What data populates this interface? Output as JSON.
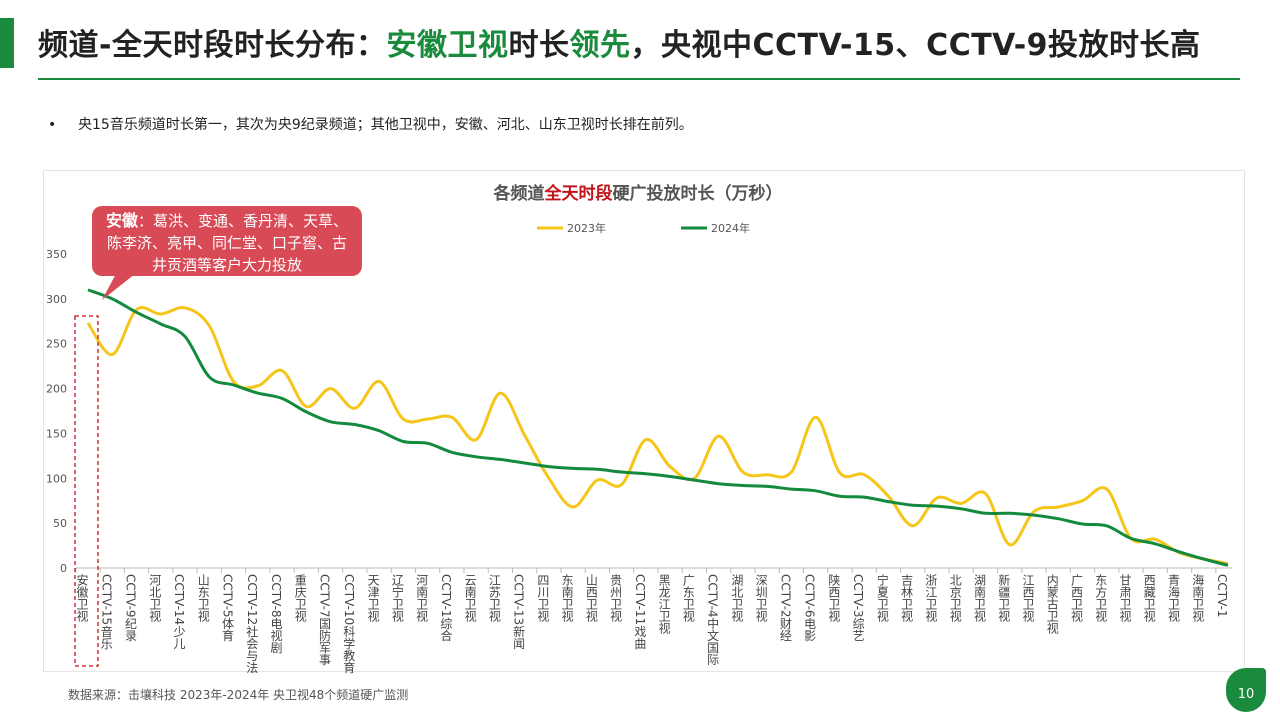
{
  "page": {
    "title_part1": "频道-全天时段时长分布：",
    "title_hl1": "安徽卫视",
    "title_part2": "时长",
    "title_hl2": "领先",
    "title_part3": "，央视中CCTV-15、CCTV-9投放时长高",
    "bullet_symbol": "•",
    "bullet_text": "央15音乐频道时长第一，其次为央9纪录频道；其他卫视中，安徽、河北、山东卫视时长排在前列。",
    "callout_bold": "安徽",
    "callout_text": "：葛洪、变通、香丹清、天草、陈李济、亮甲、同仁堂、口子窖、古井贡酒等客户大力投放",
    "footnote": "数据来源：击壤科技  2023年-2024年 央卫视48个频道硬广监测",
    "page_number": "10"
  },
  "colors": {
    "accent": "#1a8a3c",
    "series_2023": "#f5c518",
    "series_2024": "#138a3e",
    "callout_bg": "#d84a56",
    "highlight_red": "#c0151b"
  },
  "chart_data": {
    "type": "line",
    "title_part1": "各频道",
    "title_red": "全天时段",
    "title_part2": "硬广投放时长（万秒）",
    "xlabel": "",
    "ylabel": "",
    "ylim": [
      0,
      350
    ],
    "yticks": [
      0,
      50,
      100,
      150,
      200,
      250,
      300,
      350
    ],
    "grid": false,
    "legend_position": "top-center",
    "categories": [
      "安徽卫视",
      "CCTV-15音乐",
      "CCTV-9纪录",
      "河北卫视",
      "CCTV-14少儿",
      "山东卫视",
      "CCTV-5体育",
      "CCTV-12社会与法",
      "CCTV-8电视剧",
      "重庆卫视",
      "CCTV-7国防军事",
      "CCTV-10科学教育",
      "天津卫视",
      "辽宁卫视",
      "河南卫视",
      "CCTV-1综合",
      "云南卫视",
      "江苏卫视",
      "CCTV-13新闻",
      "四川卫视",
      "东南卫视",
      "山西卫视",
      "贵州卫视",
      "CCTV-11戏曲",
      "黑龙江卫视",
      "广东卫视",
      "CCTV-4中文国际",
      "湖北卫视",
      "深圳卫视",
      "CCTV-2财经",
      "CCTV-6电影",
      "陕西卫视",
      "CCTV-3综艺",
      "宁夏卫视",
      "吉林卫视",
      "浙江卫视",
      "北京卫视",
      "湖南卫视",
      "新疆卫视",
      "江西卫视",
      "内蒙古卫视",
      "广西卫视",
      "东方卫视",
      "甘肃卫视",
      "西藏卫视",
      "青海卫视",
      "海南卫视",
      "CCTV-1"
    ],
    "series": [
      {
        "name": "2023年",
        "values": [
          273,
          238,
          288,
          283,
          290,
          270,
          208,
          203,
          220,
          180,
          200,
          178,
          208,
          166,
          166,
          168,
          143,
          195,
          148,
          100,
          68,
          98,
          93,
          143,
          113,
          100,
          147,
          107,
          104,
          107,
          168,
          106,
          104,
          80,
          47,
          78,
          72,
          83,
          26,
          63,
          68,
          75,
          88,
          33,
          32,
          17,
          10,
          5
        ]
      },
      {
        "name": "2024年",
        "values": [
          310,
          300,
          285,
          272,
          258,
          213,
          204,
          195,
          189,
          174,
          163,
          160,
          153,
          141,
          139,
          129,
          124,
          121,
          117,
          113,
          111,
          110,
          107,
          105,
          102,
          98,
          94,
          92,
          91,
          88,
          86,
          80,
          79,
          74,
          70,
          69,
          66,
          61,
          61,
          59,
          55,
          49,
          47,
          33,
          27,
          18,
          10,
          3
        ]
      }
    ]
  }
}
